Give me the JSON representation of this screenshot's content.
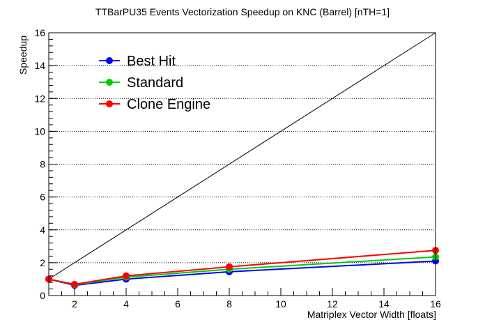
{
  "chart_data": {
    "type": "line",
    "title": "TTBarPU35 Events Vectorization Speedup on KNC (Barrel) [nTH=1]",
    "xlabel": "Matriplex Vector Width [floats]",
    "ylabel": "Speedup",
    "xlim": [
      1,
      16
    ],
    "ylim": [
      0,
      16
    ],
    "x_ticks": [
      2,
      4,
      6,
      8,
      10,
      12,
      14,
      16
    ],
    "y_ticks": [
      0,
      2,
      4,
      6,
      8,
      10,
      12,
      14,
      16
    ],
    "grid": "horizontal dotted",
    "legend_position": "top-left",
    "reference_line": {
      "x": [
        1,
        16
      ],
      "y": [
        1,
        16
      ],
      "color": "#000000"
    },
    "series": [
      {
        "name": "Best Hit",
        "color": "#0000ff",
        "x": [
          1,
          2,
          4,
          8,
          16
        ],
        "y": [
          1.0,
          0.62,
          1.0,
          1.45,
          2.1
        ]
      },
      {
        "name": "Standard",
        "color": "#00cc00",
        "x": [
          1,
          2,
          4,
          8,
          16
        ],
        "y": [
          1.0,
          0.66,
          1.12,
          1.6,
          2.35
        ]
      },
      {
        "name": "Clone Engine",
        "color": "#ff0000",
        "x": [
          1,
          2,
          4,
          8,
          16
        ],
        "y": [
          1.0,
          0.68,
          1.2,
          1.75,
          2.75
        ]
      }
    ]
  }
}
